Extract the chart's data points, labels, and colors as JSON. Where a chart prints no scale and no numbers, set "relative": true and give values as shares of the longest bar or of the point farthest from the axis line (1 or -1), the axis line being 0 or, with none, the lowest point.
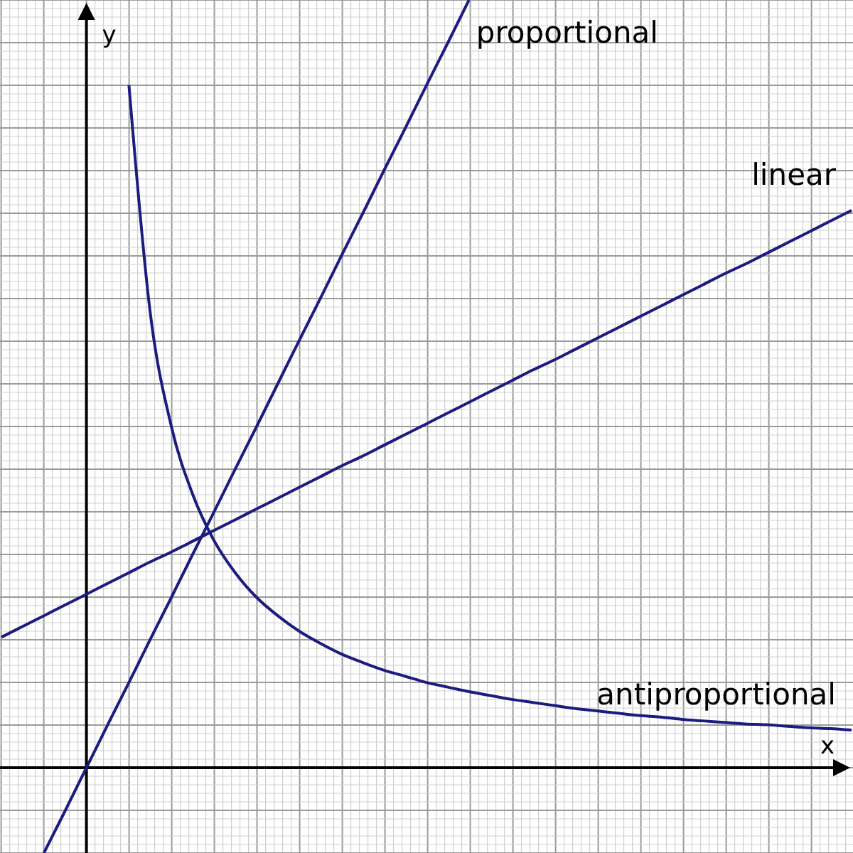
{
  "chart_data": {
    "type": "line",
    "relative": true,
    "xlabel": "x",
    "ylabel": "y",
    "grid": true,
    "marker": "none",
    "line_style": "solid",
    "categories": [
      null,
      null,
      null,
      null,
      null,
      null,
      null,
      null,
      null,
      null,
      null,
      null,
      null,
      null,
      null,
      null,
      null,
      null,
      null,
      null,
      null,
      null,
      null,
      null,
      null,
      null,
      null,
      null,
      null,
      null,
      null,
      null,
      null,
      null,
      null,
      null,
      null,
      null,
      null,
      null,
      null
    ],
    "series": [
      {
        "name": "proportional",
        "color": "#1c1c80",
        "values": [
          null,
          null,
          -0.111,
          -0.056,
          0,
          0.056,
          0.111,
          0.167,
          0.222,
          0.278,
          0.333,
          0.389,
          0.444,
          0.5,
          0.556,
          0.611,
          0.667,
          0.722,
          0.778,
          0.833,
          0.889,
          0.944,
          1,
          null,
          null,
          null,
          null,
          null,
          null,
          null,
          null,
          null,
          null,
          null,
          null,
          null,
          null,
          null,
          null,
          null,
          null
        ]
      },
      {
        "name": "linear",
        "color": "#1c1c80",
        "values": [
          0.17,
          0.184,
          0.198,
          0.212,
          0.226,
          0.24,
          0.254,
          0.268,
          0.281,
          0.295,
          0.309,
          0.323,
          0.337,
          0.351,
          0.365,
          0.379,
          0.393,
          0.406,
          0.42,
          0.434,
          0.448,
          0.462,
          0.476,
          0.49,
          0.504,
          0.518,
          0.531,
          0.545,
          0.559,
          0.573,
          0.587,
          0.601,
          0.615,
          0.629,
          0.643,
          0.656,
          0.67,
          0.684,
          0.698,
          0.712,
          0.726
        ]
      },
      {
        "name": "antiproportional",
        "color": "#1c1c80",
        "values": [
          null,
          null,
          null,
          null,
          null,
          null,
          0.889,
          0.593,
          0.444,
          0.356,
          0.296,
          0.254,
          0.222,
          0.198,
          0.178,
          0.162,
          0.148,
          0.137,
          0.127,
          0.119,
          0.111,
          0.105,
          0.099,
          0.094,
          0.089,
          0.085,
          0.081,
          0.077,
          0.074,
          0.071,
          0.068,
          0.066,
          0.063,
          0.061,
          0.059,
          0.057,
          0.056,
          0.054,
          0.052,
          0.051,
          0.049
        ]
      }
    ]
  }
}
